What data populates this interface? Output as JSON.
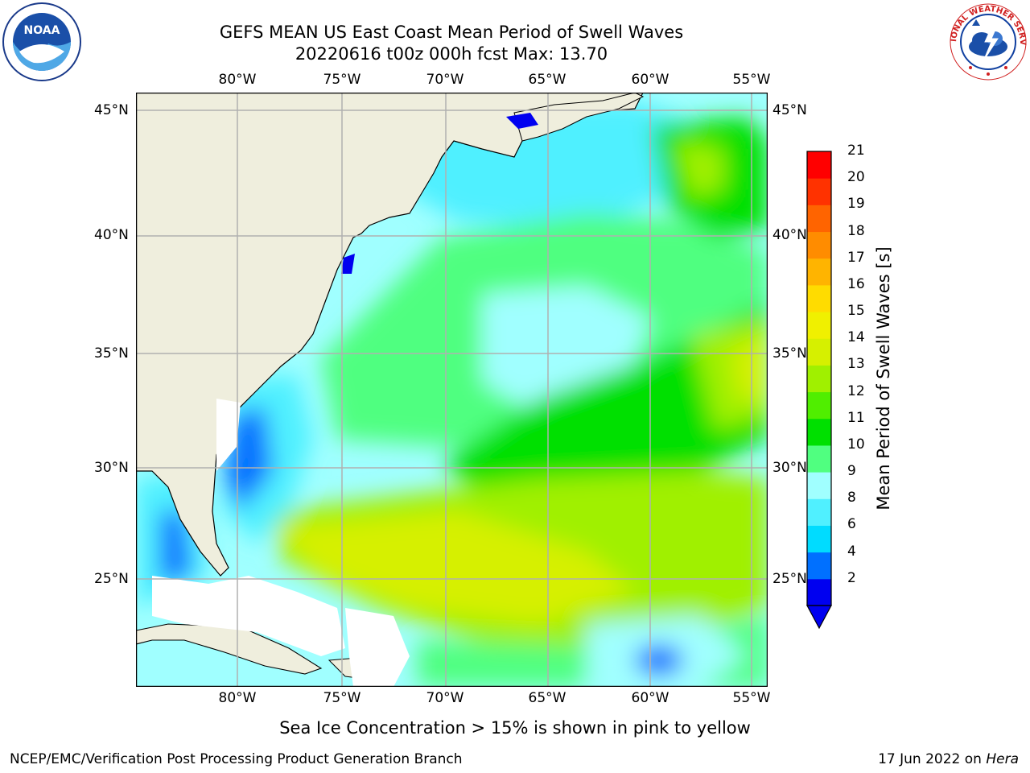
{
  "title": {
    "line1": "GEFS MEAN US East Coast Mean Period of Swell Waves",
    "line2": "20220616 t00z 000h fcst   Max: 13.70"
  },
  "map": {
    "lon_labels": [
      "80°W",
      "75°W",
      "70°W",
      "65°W",
      "60°W",
      "55°W"
    ],
    "lat_labels": [
      "45°N",
      "40°N",
      "35°N",
      "30°N",
      "25°N"
    ],
    "lon_range": [
      -85,
      -54.8
    ],
    "lat_range": [
      20.5,
      46
    ]
  },
  "colorbar": {
    "title": "Mean Period of Swell Waves [s]",
    "ticks": [
      "21",
      "20",
      "19",
      "18",
      "17",
      "16",
      "15",
      "14",
      "13",
      "12",
      "11",
      "10",
      "9",
      "8",
      "6",
      "4",
      "2"
    ],
    "colors": [
      "#0000f0",
      "#0070ff",
      "#00dcff",
      "#50f0ff",
      "#a0ffff",
      "#50ff80",
      "#00e000",
      "#50ee00",
      "#a0f000",
      "#d6f000",
      "#f0f000",
      "#ffdc00",
      "#ffb400",
      "#ff8c00",
      "#ff6400",
      "#ff3200",
      "#ff0000"
    ],
    "extend_color": "#0000f0"
  },
  "colors": {
    "land": "#efeedd",
    "missing": "#ffffff",
    "grid": "#b0b0b0"
  },
  "footer": {
    "note": "Sea Ice Concentration > 15% is shown in pink to yellow",
    "credit": "NCEP/EMC/Verification Post Processing Product Generation Branch",
    "date": "17 Jun 2022 on",
    "machine": "Hera"
  },
  "logos": {
    "noaa": "NOAA",
    "nws": "NATIONAL WEATHER SERVICE"
  }
}
